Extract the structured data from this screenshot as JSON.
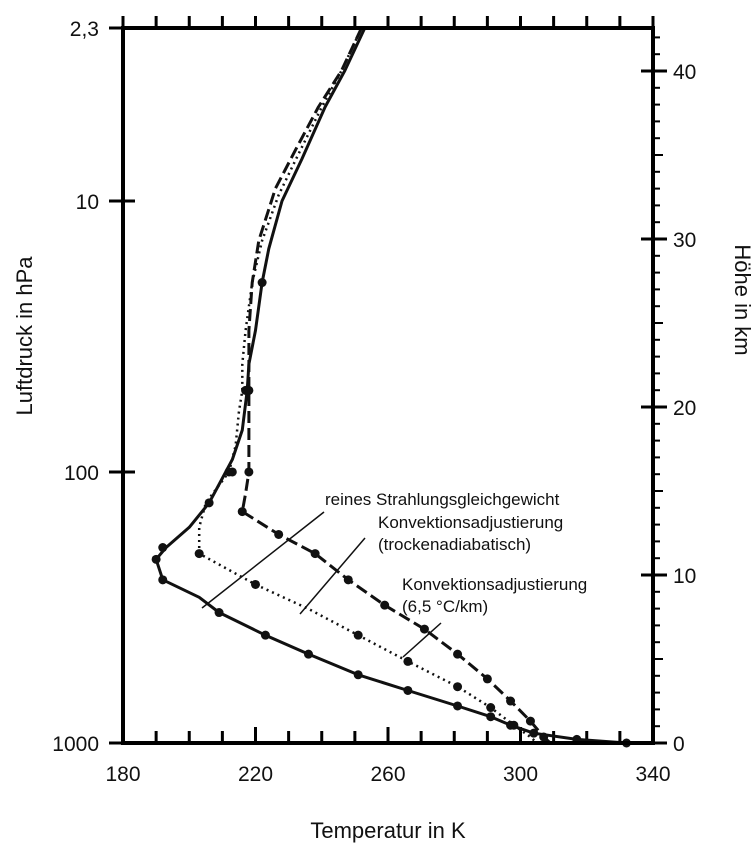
{
  "chart_data": {
    "type": "line",
    "xlabel": "Temperatur in K",
    "ylabel": "Luftdruck in hPa",
    "y2label": "Höhe in km",
    "xlim": [
      180,
      340
    ],
    "ylim": [
      2.3,
      1000
    ],
    "y_scale": "log",
    "x_ticks": [
      180,
      220,
      260,
      300,
      340
    ],
    "y_tick_labels": [
      "2,3",
      "10",
      "100",
      "1000"
    ],
    "y_tick_values": [
      2.3,
      10,
      100,
      1000
    ],
    "y2_ticks": [
      0,
      10,
      20,
      30,
      40
    ],
    "grid": false,
    "series": [
      {
        "name": "reines Strahlungsgleichgewicht",
        "style": "solid",
        "points": [
          [
            253,
            2.3
          ],
          [
            247,
            3.3
          ],
          [
            241,
            4.5
          ],
          [
            234,
            7
          ],
          [
            228,
            10
          ],
          [
            224,
            15
          ],
          [
            222,
            20
          ],
          [
            220,
            30
          ],
          [
            218,
            40
          ],
          [
            217.5,
            50
          ],
          [
            216,
            70
          ],
          [
            213,
            90
          ],
          [
            211,
            100
          ],
          [
            206,
            130
          ],
          [
            200,
            160
          ],
          [
            193,
            190
          ],
          [
            190,
            210
          ],
          [
            192,
            250
          ],
          [
            203,
            290
          ],
          [
            209,
            330
          ],
          [
            223,
            400
          ],
          [
            236,
            470
          ],
          [
            251,
            560
          ],
          [
            266,
            640
          ],
          [
            281,
            730
          ],
          [
            291,
            800
          ],
          [
            297,
            860
          ],
          [
            304,
            920
          ],
          [
            317,
            970
          ],
          [
            332,
            1000
          ]
        ],
        "markers": [
          [
            222,
            20
          ],
          [
            218,
            50
          ],
          [
            213,
            100
          ],
          [
            206,
            130
          ],
          [
            192,
            190
          ],
          [
            190,
            210
          ],
          [
            192,
            250
          ],
          [
            209,
            330
          ],
          [
            223,
            400
          ],
          [
            236,
            470
          ],
          [
            251,
            560
          ],
          [
            266,
            640
          ],
          [
            281,
            730
          ],
          [
            291,
            800
          ],
          [
            297,
            860
          ],
          [
            304,
            920
          ],
          [
            317,
            970
          ],
          [
            332,
            1000
          ]
        ]
      },
      {
        "name": "Konvektionsadjustierung (trockenadiabatisch)",
        "style": "dashed",
        "points": [
          [
            252,
            2.3
          ],
          [
            246,
            3.3
          ],
          [
            239,
            4.5
          ],
          [
            232,
            6.5
          ],
          [
            226,
            9
          ],
          [
            221,
            14
          ],
          [
            219,
            20
          ],
          [
            218,
            30
          ],
          [
            218,
            40
          ],
          [
            218,
            50
          ],
          [
            218,
            80
          ],
          [
            218,
            100
          ],
          [
            217,
            120
          ],
          [
            216,
            140
          ],
          [
            227,
            170
          ],
          [
            238,
            200
          ],
          [
            248,
            250
          ],
          [
            259,
            310
          ],
          [
            271,
            380
          ],
          [
            281,
            470
          ],
          [
            290,
            580
          ],
          [
            297,
            700
          ],
          [
            303,
            830
          ],
          [
            307,
            950
          ],
          [
            309,
            1000
          ]
        ],
        "markers": [
          [
            217.5,
            50
          ],
          [
            218,
            100
          ],
          [
            216,
            140
          ],
          [
            227,
            170
          ],
          [
            238,
            200
          ],
          [
            248,
            250
          ],
          [
            259,
            310
          ],
          [
            271,
            380
          ],
          [
            281,
            470
          ],
          [
            290,
            580
          ],
          [
            297,
            700
          ],
          [
            303,
            830
          ],
          [
            307,
            950
          ]
        ]
      },
      {
        "name": "Konvektionsadjustierung (6,5 °C/km)",
        "style": "dotted",
        "points": [
          [
            252,
            2.3
          ],
          [
            246,
            3.3
          ],
          [
            240,
            4.5
          ],
          [
            233,
            6.7
          ],
          [
            227,
            9.5
          ],
          [
            222,
            14
          ],
          [
            219,
            20
          ],
          [
            217,
            30
          ],
          [
            216,
            40
          ],
          [
            216,
            50
          ],
          [
            215,
            60
          ],
          [
            214,
            80
          ],
          [
            212,
            100
          ],
          [
            205,
            130
          ],
          [
            203,
            160
          ],
          [
            203,
            200
          ],
          [
            220,
            260
          ],
          [
            236,
            320
          ],
          [
            251,
            400
          ],
          [
            266,
            500
          ],
          [
            281,
            620
          ],
          [
            291,
            740
          ],
          [
            298,
            860
          ],
          [
            303,
            950
          ],
          [
            305,
            1000
          ]
        ],
        "markers": [
          [
            217,
            50
          ],
          [
            212,
            100
          ],
          [
            203,
            200
          ],
          [
            220,
            260
          ],
          [
            251,
            400
          ],
          [
            266,
            500
          ],
          [
            281,
            620
          ],
          [
            291,
            740
          ],
          [
            298,
            860
          ]
        ]
      }
    ],
    "annotations": [
      {
        "lines": [
          "reines Strahlungsgleichgewicht"
        ],
        "target_series": 0
      },
      {
        "lines": [
          "Konvektionsadjustierung",
          "(trockenadiabatisch)"
        ],
        "target_series": 1
      },
      {
        "lines": [
          "Konvektionsadjustierung",
          "(6,5 °C/km)"
        ],
        "target_series": 2
      }
    ]
  }
}
